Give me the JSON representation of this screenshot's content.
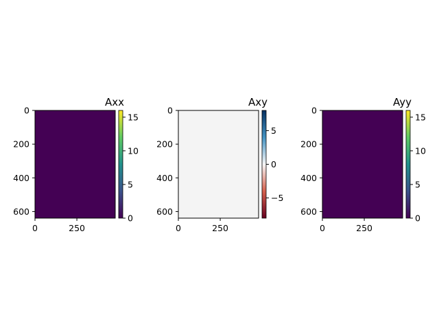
{
  "chart_data": [
    {
      "type": "heatmap",
      "title": "Axx",
      "colormap": "viridis",
      "fill_color": "#440154",
      "xlim": [
        0,
        479
      ],
      "ylim": [
        639,
        0
      ],
      "xticks": [
        0,
        250
      ],
      "yticks": [
        0,
        200,
        400,
        600
      ],
      "colorbar": {
        "range": [
          0,
          16
        ],
        "ticks": [
          0,
          5,
          10,
          15
        ],
        "colors": [
          "#440154",
          "#3b528b",
          "#21918c",
          "#5ec962",
          "#fde725"
        ]
      }
    },
    {
      "type": "heatmap",
      "title": "Axy",
      "colormap": "RdBu",
      "fill_color": "#f4f4f4",
      "xlim": [
        0,
        479
      ],
      "ylim": [
        639,
        0
      ],
      "xticks": [
        0,
        250
      ],
      "yticks": [
        0,
        200,
        400,
        600
      ],
      "colorbar": {
        "range": [
          -8,
          8
        ],
        "ticks": [
          -5,
          0,
          5
        ],
        "colors": [
          "#67001f",
          "#d6604d",
          "#f7f7f7",
          "#4393c3",
          "#053061"
        ]
      }
    },
    {
      "type": "heatmap",
      "title": "Ayy",
      "colormap": "viridis",
      "fill_color": "#440154",
      "xlim": [
        0,
        479
      ],
      "ylim": [
        639,
        0
      ],
      "xticks": [
        0,
        250
      ],
      "yticks": [
        0,
        200,
        400,
        600
      ],
      "colorbar": {
        "range": [
          0,
          16
        ],
        "ticks": [
          0,
          5,
          10,
          15
        ],
        "colors": [
          "#440154",
          "#3b528b",
          "#21918c",
          "#5ec962",
          "#fde725"
        ]
      }
    }
  ]
}
